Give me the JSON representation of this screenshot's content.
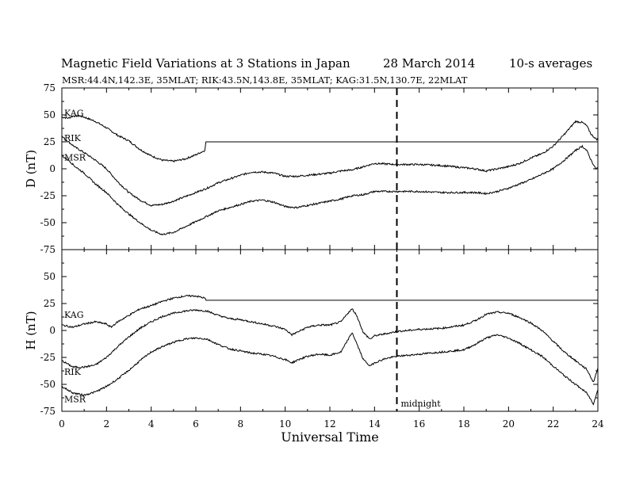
{
  "title": {
    "main": "Magnetic Field Variations at 3 Stations in Japan",
    "date": "28 March   2014",
    "averaging": "10-s averages"
  },
  "subtitle": "MSR:44.4N,142.3E, 35MLAT;  RIK:43.5N,143.8E, 35MLAT;  KAG:31.5N,130.7E, 22MLAT",
  "chart_data": [
    {
      "type": "line",
      "panel": "top",
      "ylabel": "D (nT)",
      "ylim": [
        -75,
        75
      ],
      "yticks": [
        75,
        50,
        25,
        0,
        -25,
        -50,
        -75
      ],
      "xlim": [
        0,
        24
      ],
      "series": [
        {
          "name": "KAG",
          "x": [
            0,
            0.3,
            0.5,
            0.8,
            1,
            1.5,
            2,
            2.5,
            3,
            3.5,
            4,
            4.5,
            5,
            5.5,
            6,
            6.4,
            6.45,
            24
          ],
          "y": [
            48,
            47,
            49,
            49,
            48,
            44,
            38,
            31,
            26,
            18,
            12,
            8,
            7,
            9,
            13,
            17,
            25,
            25
          ]
        },
        {
          "name": "RIK",
          "x": [
            0,
            0.3,
            0.6,
            1,
            1.5,
            2,
            2.5,
            3,
            3.5,
            4,
            4.5,
            5,
            5.5,
            6,
            6.5,
            7,
            8,
            8.5,
            9,
            9.5,
            10,
            10.5,
            11,
            12,
            12.5,
            13,
            13.5,
            14,
            15,
            16,
            17,
            18,
            18.5,
            19,
            19.5,
            20,
            20.5,
            21,
            21.5,
            22,
            22.5,
            23,
            23.3,
            23.5,
            23.7,
            23.9,
            24
          ],
          "y": [
            30,
            25,
            20,
            15,
            8,
            0,
            -12,
            -22,
            -29,
            -34,
            -33,
            -30,
            -26,
            -22,
            -18,
            -13,
            -6,
            -3,
            -3,
            -4,
            -7,
            -7,
            -6,
            -4,
            -2,
            -1,
            2,
            5,
            4,
            4,
            3,
            1,
            0,
            -2,
            0,
            2,
            5,
            10,
            14,
            21,
            32,
            44,
            43,
            40,
            32,
            28,
            27
          ]
        },
        {
          "name": "MSR",
          "x": [
            0,
            0.3,
            0.6,
            1,
            1.5,
            2,
            2.5,
            3,
            3.5,
            4,
            4.5,
            5,
            5.5,
            6,
            6.5,
            7,
            8,
            8.5,
            9,
            9.5,
            10,
            10.5,
            11,
            12,
            12.5,
            13,
            13.5,
            14,
            15,
            16,
            17,
            18,
            18.5,
            19,
            19.5,
            20,
            20.5,
            21,
            21.5,
            22,
            22.5,
            23,
            23.3,
            23.5,
            23.7,
            23.9,
            24
          ],
          "y": [
            12,
            8,
            2,
            -4,
            -14,
            -22,
            -33,
            -42,
            -50,
            -57,
            -61,
            -59,
            -54,
            -49,
            -44,
            -39,
            -33,
            -30,
            -29,
            -31,
            -35,
            -36,
            -34,
            -30,
            -28,
            -25,
            -24,
            -21,
            -21,
            -21,
            -22,
            -22,
            -22,
            -23,
            -21,
            -18,
            -14,
            -10,
            -5,
            0,
            8,
            17,
            21,
            17,
            8,
            0,
            1
          ]
        }
      ]
    },
    {
      "type": "line",
      "panel": "bottom",
      "ylabel": "H (nT)",
      "xlabel": "Universal Time",
      "ylim": [
        -75,
        75
      ],
      "yticks": [
        75,
        50,
        25,
        0,
        -25,
        -50,
        -75
      ],
      "xlim": [
        0,
        24
      ],
      "xticks": [
        0,
        2,
        4,
        6,
        8,
        10,
        12,
        14,
        16,
        18,
        20,
        22,
        24
      ],
      "annotation": {
        "x": 15,
        "label": "midnight"
      },
      "series": [
        {
          "name": "KAG",
          "x": [
            0,
            0.5,
            1,
            1.5,
            2,
            2.2,
            2.5,
            3,
            3.5,
            4,
            4.5,
            5,
            5.5,
            6,
            6.4,
            6.45,
            24
          ],
          "y": [
            5,
            3,
            6,
            8,
            6,
            3,
            8,
            14,
            20,
            23,
            27,
            30,
            32,
            32,
            30,
            28,
            28
          ]
        },
        {
          "name": "RIK",
          "x": [
            0,
            0.5,
            1,
            1.5,
            2,
            2.5,
            3,
            3.5,
            4,
            4.5,
            5,
            5.5,
            6,
            6.5,
            7,
            7.5,
            8,
            8.5,
            9,
            9.5,
            10,
            10.3,
            10.6,
            11,
            11.5,
            12,
            12.5,
            12.8,
            13,
            13.2,
            13.5,
            13.8,
            14,
            14.5,
            15,
            16,
            17,
            18,
            18.5,
            19,
            19.5,
            20,
            20.5,
            21,
            21.5,
            22,
            22.5,
            23,
            23.5,
            23.8,
            24
          ],
          "y": [
            -28,
            -34,
            -34,
            -32,
            -25,
            -15,
            -6,
            2,
            8,
            13,
            16,
            18,
            19,
            18,
            14,
            11,
            10,
            8,
            6,
            4,
            1,
            -4,
            -1,
            3,
            5,
            5,
            8,
            16,
            20,
            14,
            -2,
            -8,
            -5,
            -3,
            -1,
            1,
            2,
            5,
            9,
            15,
            17,
            16,
            12,
            7,
            0,
            -10,
            -20,
            -28,
            -36,
            -48,
            -35
          ]
        },
        {
          "name": "MSR",
          "x": [
            0,
            0.5,
            1,
            1.5,
            2,
            2.5,
            3,
            3.5,
            4,
            4.5,
            5,
            5.5,
            6,
            6.5,
            7,
            7.5,
            8,
            8.5,
            9,
            9.5,
            10,
            10.3,
            10.6,
            11,
            11.5,
            12,
            12.5,
            12.8,
            13,
            13.2,
            13.5,
            13.8,
            14,
            14.5,
            15,
            16,
            17,
            18,
            18.5,
            19,
            19.5,
            20,
            20.5,
            21,
            21.5,
            22,
            22.5,
            23,
            23.5,
            23.8,
            24
          ],
          "y": [
            -52,
            -58,
            -60,
            -57,
            -52,
            -45,
            -37,
            -28,
            -20,
            -15,
            -11,
            -8,
            -7,
            -8,
            -13,
            -17,
            -19,
            -21,
            -22,
            -24,
            -27,
            -30,
            -27,
            -24,
            -22,
            -23,
            -20,
            -9,
            -2,
            -12,
            -27,
            -33,
            -30,
            -26,
            -24,
            -22,
            -20,
            -18,
            -13,
            -7,
            -4,
            -7,
            -12,
            -18,
            -24,
            -33,
            -42,
            -50,
            -58,
            -68,
            -55
          ]
        }
      ]
    }
  ]
}
